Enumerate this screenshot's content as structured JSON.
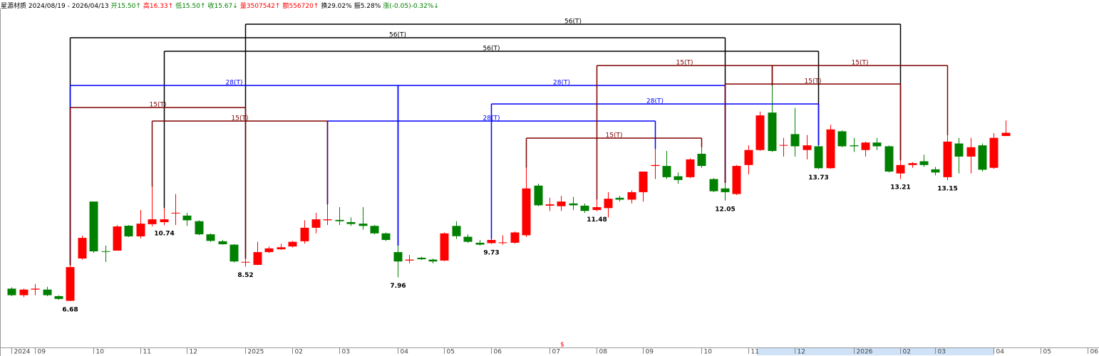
{
  "chart_data": {
    "type": "candlestick",
    "header": [
      {
        "text": "星源材质 2024/08/19 - 2026/04/13",
        "color": "#000000"
      },
      {
        "text": "开15.50↑",
        "color": "#008000"
      },
      {
        "text": "高16.33↑",
        "color": "#ff0000"
      },
      {
        "text": "低15.50↑",
        "color": "#008000"
      },
      {
        "text": "收15.67↓",
        "color": "#008000"
      },
      {
        "text": "量3507542↑",
        "color": "#ff0000"
      },
      {
        "text": "额556720↑",
        "color": "#ff0000"
      },
      {
        "text": "换29.02%",
        "color": "#000000"
      },
      {
        "text": "振5.28%",
        "color": "#000000"
      },
      {
        "text": "涨(-0.05)-0.32%↓",
        "color": "#008000"
      }
    ],
    "marker": "$",
    "up_color": "#ff0000",
    "down_color": "#008000",
    "xlim": [
      -1,
      93
    ],
    "ylim": [
      4.21,
      22.38
    ],
    "xticks": [
      {
        "value": 0,
        "label": "2024"
      },
      {
        "value": 2,
        "label": "09"
      },
      {
        "value": 7,
        "label": "10"
      },
      {
        "value": 11,
        "label": "11"
      },
      {
        "value": 15,
        "label": "12"
      },
      {
        "value": 20,
        "label": "2025"
      },
      {
        "value": 24,
        "label": "02"
      },
      {
        "value": 28,
        "label": "03"
      },
      {
        "value": 33,
        "label": "04"
      },
      {
        "value": 37,
        "label": "05"
      },
      {
        "value": 41,
        "label": "06"
      },
      {
        "value": 46,
        "label": "07"
      },
      {
        "value": 50,
        "label": "08"
      },
      {
        "value": 54,
        "label": "09"
      },
      {
        "value": 59,
        "label": "10"
      },
      {
        "value": 63,
        "label": "11"
      },
      {
        "value": 67,
        "label": "12"
      },
      {
        "value": 72,
        "label": "2026"
      },
      {
        "value": 76,
        "label": "02"
      },
      {
        "value": 79,
        "label": "03"
      },
      {
        "value": 84,
        "label": "04"
      },
      {
        "value": 88,
        "label": "05"
      },
      {
        "value": 92,
        "label": "06"
      }
    ],
    "open": [
      7.35,
      7.0,
      7.3,
      7.3,
      6.95,
      6.7,
      8.96,
      12.0,
      9.35,
      9.38,
      10.71,
      10.14,
      10.79,
      10.9,
      11.38,
      11.25,
      10.95,
      10.25,
      9.88,
      9.7,
      8.75,
      8.62,
      9.3,
      9.45,
      9.6,
      9.88,
      10.6,
      11.0,
      11.02,
      10.9,
      10.82,
      10.7,
      10.3,
      9.3,
      8.85,
      9.0,
      8.9,
      8.85,
      10.7,
      10.12,
      9.8,
      9.78,
      9.8,
      9.8,
      10.2,
      12.85,
      11.78,
      11.75,
      11.9,
      11.78,
      11.55,
      11.65,
      12.2,
      12.1,
      12.5,
      13.9,
      13.9,
      13.35,
      13.3,
      14.55,
      13.2,
      12.7,
      12.4,
      13.95,
      14.75,
      16.75,
      15.0,
      15.6,
      14.75,
      14.95,
      13.78,
      15.75,
      15.0,
      14.75,
      15.15,
      14.95,
      13.5,
      13.95,
      14.15,
      13.72,
      13.3,
      15.1,
      14.4,
      15.0,
      13.8,
      15.5
    ],
    "high": [
      7.42,
      7.35,
      7.6,
      7.45,
      7.0,
      8.6,
      10.18,
      12.0,
      9.65,
      10.75,
      10.75,
      11.55,
      12.8,
      11.65,
      12.4,
      11.4,
      11.0,
      10.3,
      9.95,
      9.72,
      8.95,
      9.85,
      9.6,
      9.75,
      9.9,
      11.0,
      11.4,
      11.85,
      11.7,
      11.15,
      11.7,
      10.75,
      10.35,
      9.65,
      9.15,
      9.05,
      8.95,
      10.35,
      10.95,
      10.25,
      9.95,
      10.0,
      10.2,
      10.4,
      13.8,
      12.95,
      12.2,
      12.3,
      12.25,
      11.9,
      12.1,
      12.5,
      12.3,
      12.6,
      13.6,
      14.8,
      14.7,
      13.55,
      14.3,
      14.9,
      13.25,
      13.0,
      13.95,
      15.0,
      16.8,
      18.2,
      15.4,
      17.0,
      15.55,
      15.0,
      16.1,
      15.8,
      15.4,
      15.2,
      15.4,
      15.0,
      14.2,
      14.1,
      14.5,
      13.85,
      15.55,
      15.4,
      15.4,
      15.1,
      15.65,
      16.33
    ],
    "low": [
      6.95,
      6.9,
      7.0,
      6.95,
      6.75,
      6.68,
      8.9,
      9.26,
      8.77,
      9.38,
      10.1,
      10.03,
      10.67,
      10.74,
      10.75,
      10.7,
      10.2,
      9.85,
      9.7,
      8.75,
      8.52,
      8.6,
      9.25,
      9.42,
      9.55,
      9.75,
      10.3,
      10.75,
      10.75,
      10.7,
      10.5,
      10.25,
      9.9,
      7.96,
      8.7,
      8.88,
      8.7,
      8.82,
      10.0,
      9.8,
      9.65,
      9.73,
      9.7,
      9.75,
      10.1,
      11.75,
      11.5,
      11.5,
      11.55,
      11.4,
      11.48,
      11.15,
      12.0,
      11.9,
      12.0,
      13.2,
      13.2,
      12.95,
      13.25,
      13.8,
      12.5,
      12.05,
      12.35,
      13.45,
      14.7,
      14.65,
      14.4,
      14.4,
      14.25,
      13.73,
      13.75,
      14.9,
      14.65,
      14.4,
      14.75,
      13.55,
      13.21,
      13.8,
      13.85,
      13.4,
      13.15,
      13.5,
      13.5,
      13.6,
      13.75,
      15.5
    ],
    "close": [
      7.0,
      7.3,
      7.35,
      7.0,
      6.8,
      8.5,
      10.06,
      9.34,
      9.32,
      10.67,
      10.14,
      10.82,
      11.05,
      11.05,
      11.4,
      11.0,
      10.25,
      9.9,
      9.72,
      8.8,
      8.78,
      9.3,
      9.5,
      9.56,
      9.85,
      10.6,
      11.05,
      11.05,
      10.95,
      10.8,
      10.7,
      10.3,
      9.95,
      8.8,
      8.9,
      8.92,
      8.8,
      10.3,
      10.15,
      9.85,
      9.7,
      9.95,
      9.82,
      10.35,
      12.7,
      11.8,
      11.85,
      12.0,
      11.8,
      11.5,
      11.7,
      12.15,
      12.1,
      12.5,
      13.6,
      13.95,
      13.3,
      13.15,
      14.25,
      13.9,
      12.55,
      12.5,
      13.9,
      14.75,
      16.6,
      14.7,
      15.02,
      14.95,
      15.0,
      13.78,
      15.85,
      14.95,
      14.95,
      15.15,
      14.95,
      13.6,
      13.95,
      14.05,
      13.95,
      13.55,
      15.2,
      14.4,
      14.9,
      13.7,
      15.4,
      15.67
    ],
    "low_labels": [
      null,
      null,
      null,
      null,
      null,
      "6.68",
      null,
      null,
      null,
      null,
      null,
      null,
      null,
      "10.74",
      null,
      null,
      null,
      null,
      null,
      null,
      "8.52",
      null,
      null,
      null,
      null,
      null,
      null,
      null,
      null,
      null,
      null,
      null,
      null,
      "7.96",
      null,
      null,
      null,
      null,
      null,
      null,
      null,
      "9.73",
      null,
      null,
      null,
      null,
      null,
      null,
      null,
      null,
      "11.48",
      null,
      null,
      null,
      null,
      null,
      null,
      null,
      null,
      null,
      null,
      "12.05",
      null,
      null,
      null,
      null,
      null,
      null,
      null,
      "13.73",
      null,
      null,
      null,
      null,
      null,
      null,
      "13.21",
      null,
      null,
      null,
      "13.15",
      null,
      null,
      null,
      null,
      null
    ],
    "annotations": [
      {
        "label": "56(T)",
        "color": "#000000",
        "from": 5,
        "to": 61
      },
      {
        "label": "56(T)",
        "color": "#000000",
        "from": 20,
        "to": 76
      },
      {
        "label": "56(T)",
        "color": "#000000",
        "from": 13,
        "to": 69
      },
      {
        "label": "28(T)",
        "color": "#0000ff",
        "from": 5,
        "to": 33
      },
      {
        "label": "28(T)",
        "color": "#0000ff",
        "from": 33,
        "to": 61
      },
      {
        "label": "28(T)",
        "color": "#0000ff",
        "from": 41,
        "to": 69
      },
      {
        "label": "28(T)",
        "color": "#0000ff",
        "from": 27,
        "to": 55
      },
      {
        "label": "15(T)",
        "color": "#800000",
        "from": 5,
        "to": 20
      },
      {
        "label": "15(T)",
        "color": "#800000",
        "from": 12,
        "to": 27
      },
      {
        "label": "15(T)",
        "color": "#800000",
        "from": 44,
        "to": 59
      },
      {
        "label": "15(T)",
        "color": "#800000",
        "from": 50,
        "to": 65
      },
      {
        "label": "15(T)",
        "color": "#800000",
        "from": 65,
        "to": 80
      },
      {
        "label": "15(T)",
        "color": "#800000",
        "from": 61,
        "to": 76
      }
    ]
  }
}
